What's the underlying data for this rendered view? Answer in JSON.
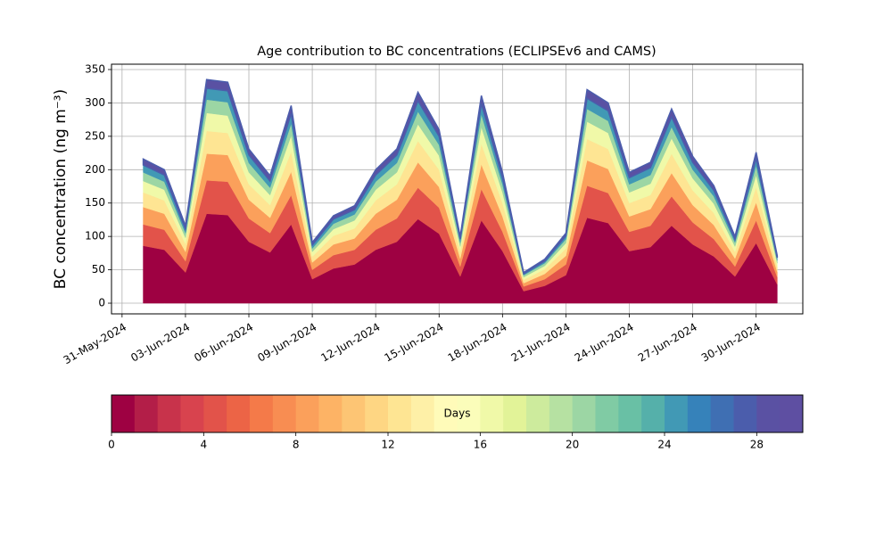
{
  "chart_data": {
    "type": "stacked_area",
    "title": "Age contribution to BC concentrations (ECLIPSEv6 and CAMS)",
    "y_label": "BC concentration (ng m⁻³)",
    "x": [
      "01-Jun-2024",
      "02-Jun-2024",
      "03-Jun-2024",
      "04-Jun-2024",
      "05-Jun-2024",
      "06-Jun-2024",
      "07-Jun-2024",
      "08-Jun-2024",
      "09-Jun-2024",
      "10-Jun-2024",
      "11-Jun-2024",
      "12-Jun-2024",
      "13-Jun-2024",
      "14-Jun-2024",
      "15-Jun-2024",
      "16-Jun-2024",
      "17-Jun-2024",
      "18-Jun-2024",
      "19-Jun-2024",
      "20-Jun-2024",
      "21-Jun-2024",
      "22-Jun-2024",
      "23-Jun-2024",
      "24-Jun-2024",
      "25-Jun-2024",
      "26-Jun-2024",
      "27-Jun-2024",
      "28-Jun-2024",
      "29-Jun-2024",
      "30-Jun-2024",
      "01-Jul-2024"
    ],
    "series": [
      {
        "color": "#9e0142",
        "values": [
          86,
          80,
          46,
          134,
          132,
          92,
          76,
          118,
          36,
          52,
          58,
          80,
          92,
          126,
          104,
          40,
          124,
          78,
          18,
          26,
          42,
          128,
          120,
          78,
          84,
          116,
          88,
          70,
          40,
          90,
          28
        ]
      },
      {
        "color": "#e2534a",
        "values": [
          32,
          30,
          17,
          50,
          50,
          35,
          29,
          44,
          14,
          20,
          22,
          30,
          35,
          47,
          39,
          15,
          47,
          29,
          7,
          10,
          16,
          48,
          45,
          29,
          32,
          44,
          33,
          26,
          15,
          34,
          11
        ]
      },
      {
        "color": "#fba05b",
        "values": [
          26,
          24,
          14,
          40,
          40,
          28,
          23,
          35,
          11,
          16,
          17,
          24,
          28,
          38,
          31,
          12,
          37,
          23,
          5,
          8,
          13,
          38,
          36,
          23,
          25,
          35,
          26,
          21,
          12,
          27,
          8
        ]
      },
      {
        "color": "#fee593",
        "values": [
          22,
          20,
          12,
          34,
          33,
          23,
          19,
          30,
          9,
          13,
          15,
          20,
          23,
          32,
          26,
          10,
          31,
          20,
          5,
          7,
          11,
          32,
          30,
          20,
          21,
          29,
          22,
          18,
          10,
          23,
          7
        ]
      },
      {
        "color": "#f0f9a8",
        "values": [
          17,
          16,
          9,
          27,
          26,
          18,
          15,
          24,
          7,
          10,
          12,
          16,
          18,
          25,
          21,
          8,
          25,
          16,
          4,
          5,
          8,
          26,
          24,
          16,
          17,
          23,
          18,
          14,
          8,
          18,
          6
        ]
      },
      {
        "color": "#9cd6a4",
        "values": [
          13,
          12,
          7,
          20,
          20,
          14,
          11,
          18,
          5,
          8,
          9,
          12,
          14,
          19,
          16,
          6,
          19,
          12,
          3,
          4,
          6,
          19,
          18,
          12,
          13,
          17,
          13,
          11,
          6,
          14,
          4
        ]
      },
      {
        "color": "#4199b5",
        "values": [
          11,
          10,
          6,
          17,
          17,
          12,
          10,
          15,
          5,
          7,
          7,
          10,
          12,
          16,
          13,
          5,
          16,
          10,
          2,
          3,
          5,
          16,
          15,
          10,
          11,
          15,
          11,
          9,
          5,
          11,
          4
        ]
      },
      {
        "color": "#5a51a3",
        "values": [
          9,
          8,
          5,
          13,
          13,
          9,
          8,
          12,
          4,
          5,
          6,
          8,
          9,
          13,
          10,
          4,
          12,
          8,
          2,
          3,
          4,
          13,
          12,
          8,
          8,
          12,
          9,
          7,
          4,
          9,
          3
        ]
      }
    ],
    "xlim": [
      "2024-05-30T12:00Z",
      "2024-07-02T05:00Z"
    ],
    "xticks": [
      "31-May-2024",
      "03-Jun-2024",
      "06-Jun-2024",
      "09-Jun-2024",
      "12-Jun-2024",
      "15-Jun-2024",
      "18-Jun-2024",
      "21-Jun-2024",
      "24-Jun-2024",
      "27-Jun-2024",
      "30-Jun-2024"
    ],
    "ylim": [
      -16,
      358
    ],
    "yticks": [
      0,
      50,
      100,
      150,
      200,
      250,
      300,
      350
    ],
    "grid": true,
    "colorbar": {
      "label": "Days",
      "lim": [
        0,
        30
      ],
      "ticks": [
        0,
        4,
        8,
        12,
        16,
        20,
        24,
        28
      ],
      "colors": [
        "#9e0142",
        "#b31e48",
        "#c8334b",
        "#d8434e",
        "#e2534a",
        "#ec6446",
        "#f47a49",
        "#f88d52",
        "#fba05b",
        "#fdb365",
        "#fdc574",
        "#fed683",
        "#fee593",
        "#fef0a7",
        "#fffbb9",
        "#fbfdba",
        "#f0f9a8",
        "#e2f398",
        "#cdeb9d",
        "#b6e1a2",
        "#9cd6a4",
        "#80cba4",
        "#69c0a5",
        "#55b0aa",
        "#4199b5",
        "#3682ba",
        "#3f6fb3",
        "#4b5dac",
        "#5a51a3",
        "#5e4fa2"
      ]
    }
  }
}
